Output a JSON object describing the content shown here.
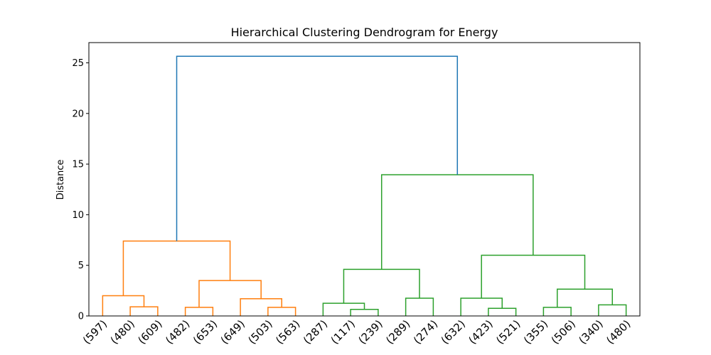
{
  "chart_data": {
    "type": "dendrogram",
    "title": "Hierarchical Clustering Dendrogram for Energy",
    "xlabel": "",
    "ylabel": "Distance",
    "ylim": [
      0,
      27
    ],
    "yticks": [
      0,
      5,
      10,
      15,
      20,
      25
    ],
    "grid": false,
    "leaves": [
      "(597)",
      "(480)",
      "(609)",
      "(482)",
      "(653)",
      "(649)",
      "(503)",
      "(563)",
      "(287)",
      "(117)",
      "(239)",
      "(289)",
      "(274)",
      "(632)",
      "(423)",
      "(521)",
      "(355)",
      "(506)",
      "(340)",
      "(480)"
    ],
    "colors": {
      "cluster1": "#ff7f0e",
      "cluster2": "#2ca02c",
      "root": "#1f77b4"
    },
    "links": [
      {
        "a": 1,
        "b": 2,
        "height": 0.9,
        "color": "cluster1"
      },
      {
        "a": 0,
        "b": 20,
        "height": 2.0,
        "color": "cluster1"
      },
      {
        "a": 3,
        "b": 4,
        "height": 0.85,
        "color": "cluster1"
      },
      {
        "a": 6,
        "b": 7,
        "height": 0.85,
        "color": "cluster1"
      },
      {
        "a": 5,
        "b": 23,
        "height": 1.7,
        "color": "cluster1"
      },
      {
        "a": 22,
        "b": 24,
        "height": 3.5,
        "color": "cluster1"
      },
      {
        "a": 21,
        "b": 25,
        "height": 7.4,
        "color": "cluster1"
      },
      {
        "a": 9,
        "b": 10,
        "height": 0.65,
        "color": "cluster2"
      },
      {
        "a": 8,
        "b": 27,
        "height": 1.25,
        "color": "cluster2"
      },
      {
        "a": 11,
        "b": 12,
        "height": 1.75,
        "color": "cluster2"
      },
      {
        "a": 28,
        "b": 29,
        "height": 4.6,
        "color": "cluster2"
      },
      {
        "a": 14,
        "b": 15,
        "height": 0.75,
        "color": "cluster2"
      },
      {
        "a": 13,
        "b": 31,
        "height": 1.75,
        "color": "cluster2"
      },
      {
        "a": 16,
        "b": 17,
        "height": 0.85,
        "color": "cluster2"
      },
      {
        "a": 18,
        "b": 19,
        "height": 1.1,
        "color": "cluster2"
      },
      {
        "a": 33,
        "b": 34,
        "height": 2.65,
        "color": "cluster2"
      },
      {
        "a": 32,
        "b": 35,
        "height": 6.0,
        "color": "cluster2"
      },
      {
        "a": 30,
        "b": 36,
        "height": 13.95,
        "color": "cluster2"
      },
      {
        "a": 26,
        "b": 37,
        "height": 25.65,
        "color": "root"
      }
    ]
  }
}
